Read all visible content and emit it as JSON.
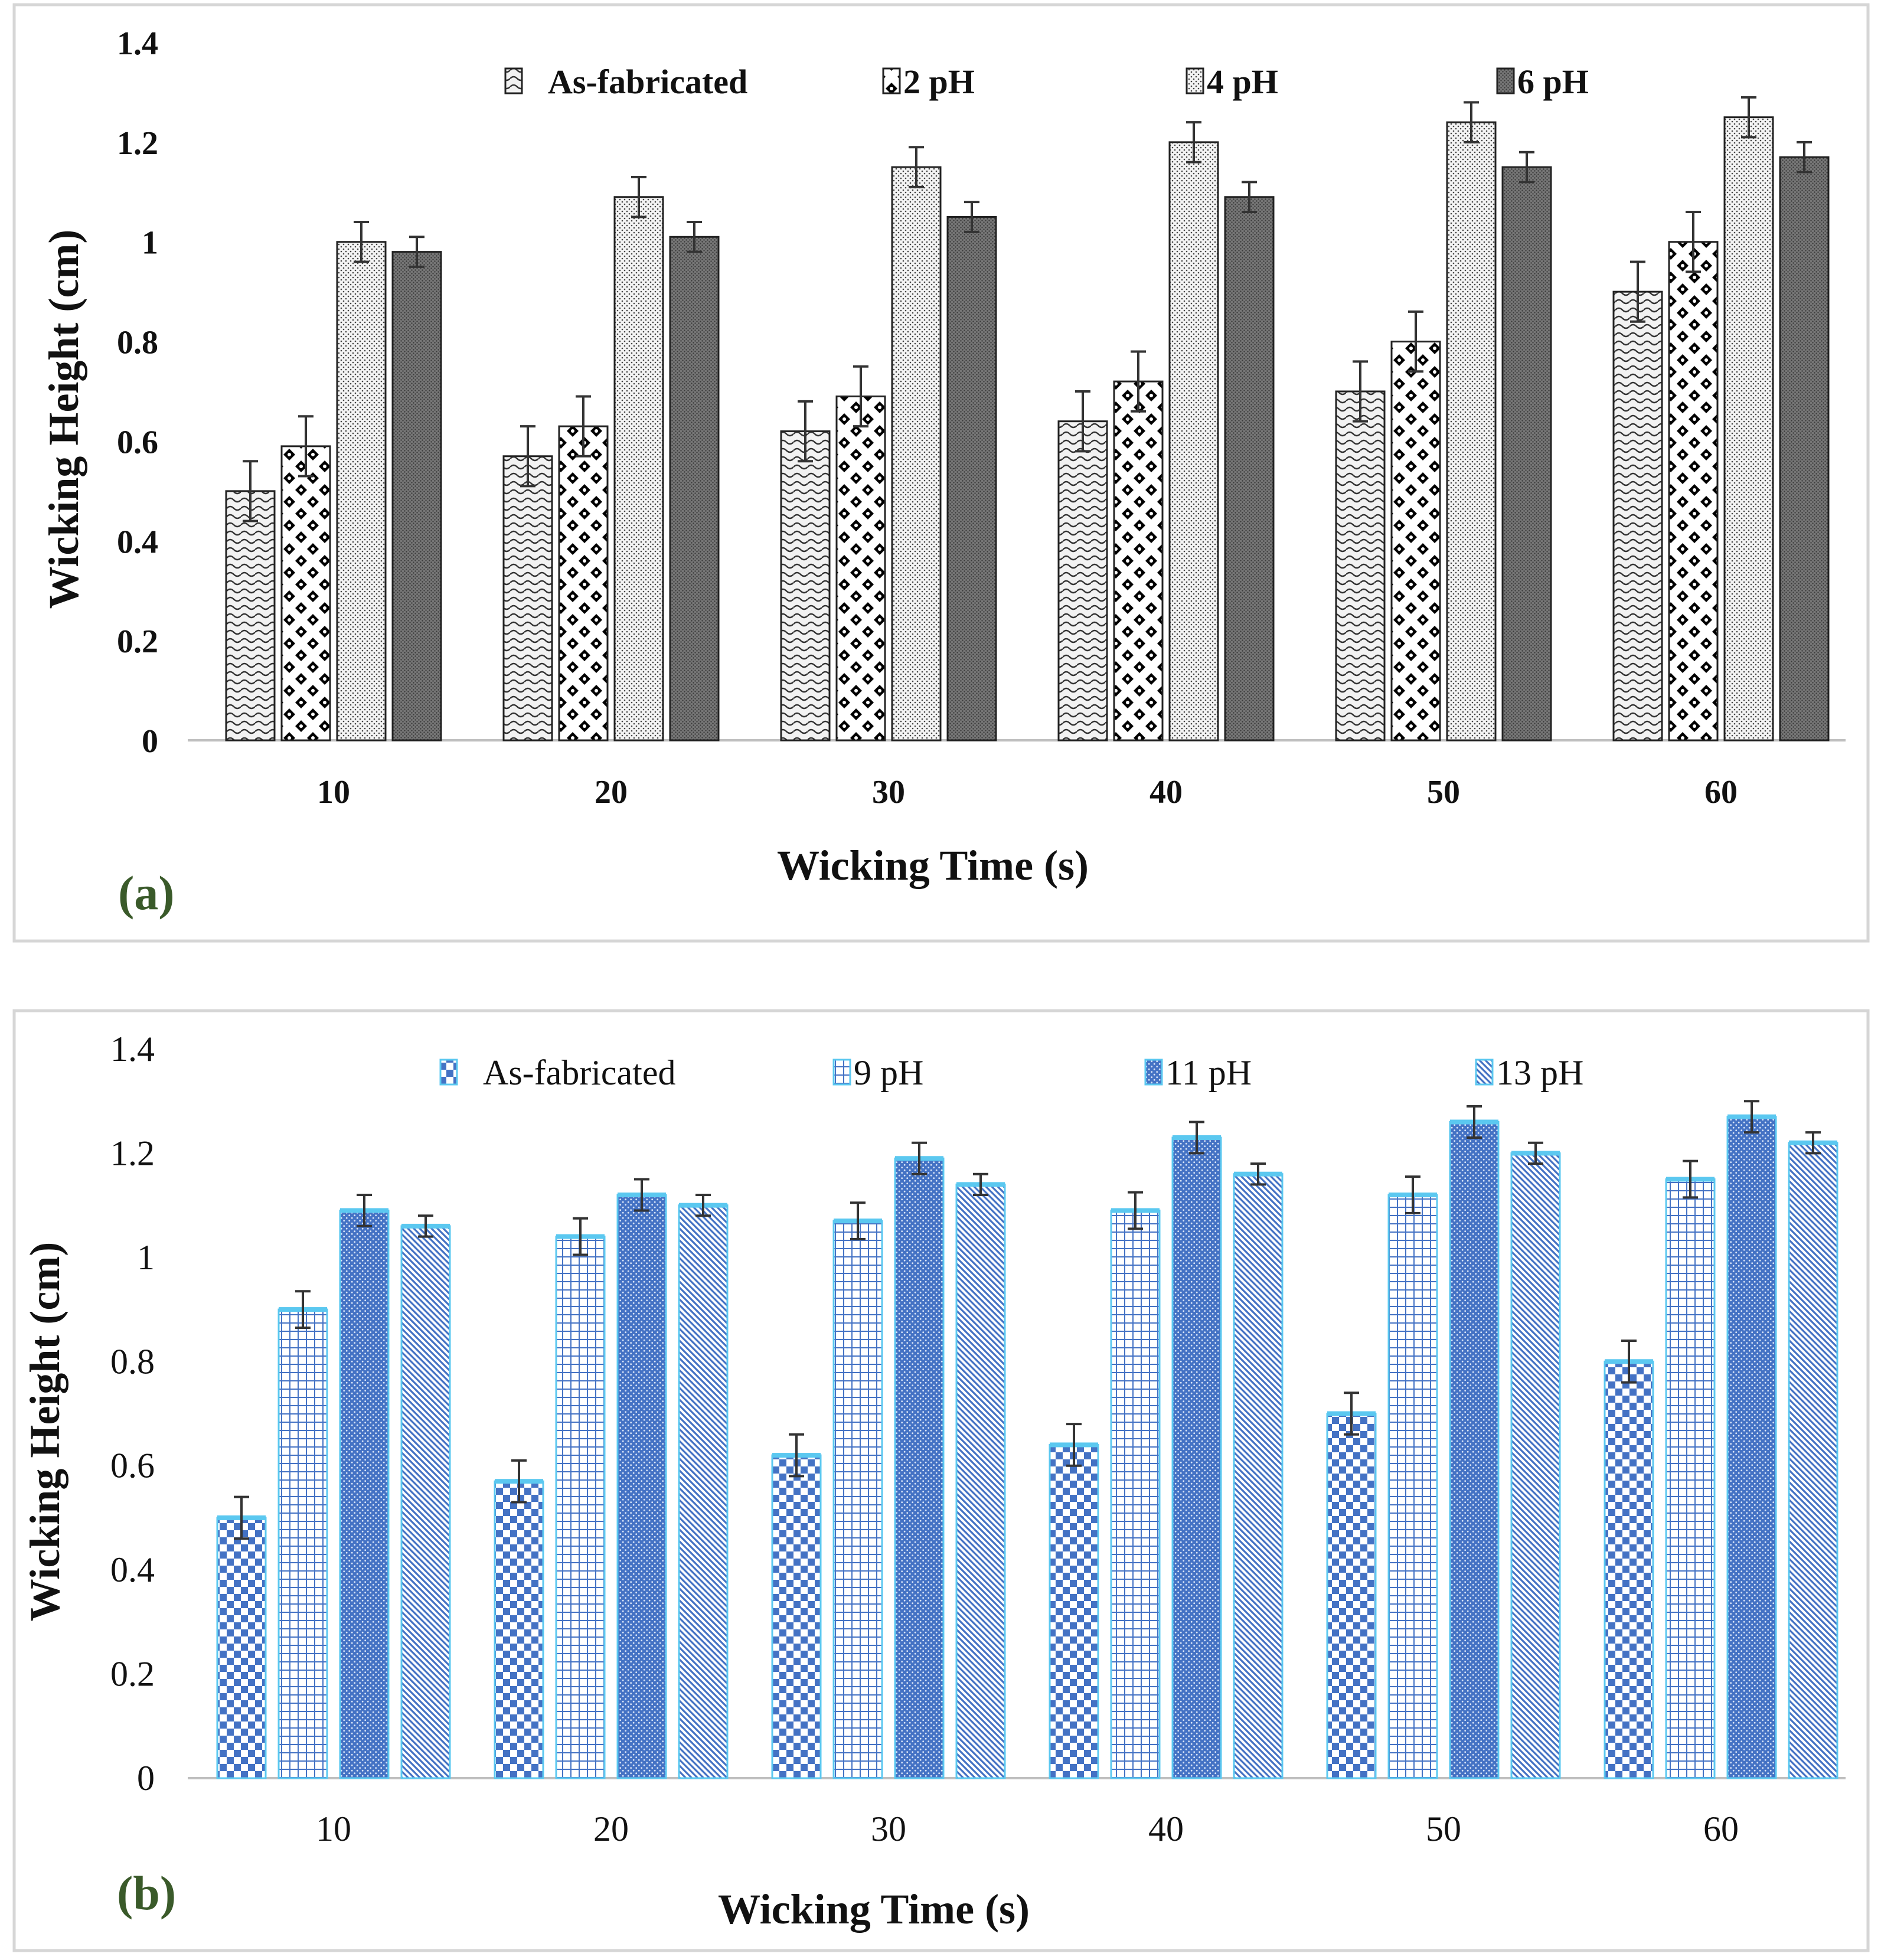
{
  "figure": {
    "colors": {
      "panel_label": "#3a5a2a",
      "bar_outline_a": "#222222",
      "bar_fill_b": "#4472c4",
      "bar_top_b": "#5bc8f0"
    },
    "panels": [
      {
        "label": "(a)",
        "xlabel": "Wicking   Time  (s)",
        "ylabel": "Wicking    Height  (cm)"
      },
      {
        "label": "(b)",
        "xlabel": "Wicking   Time  (s)",
        "ylabel": "Wicking    Height  (cm)"
      }
    ]
  },
  "chart_data": [
    {
      "type": "bar",
      "panel": "(a)",
      "title": "",
      "xlabel": "Wicking   Time  (s)",
      "ylabel": "Wicking    Height  (cm)",
      "categories": [
        "10",
        "20",
        "30",
        "40",
        "50",
        "60"
      ],
      "ylim": [
        0,
        1.4
      ],
      "yticks": [
        "0",
        "0.2",
        "0.4",
        "0.6",
        "0.8",
        "1",
        "1.2",
        "1.4"
      ],
      "grid": false,
      "legend_position": "top",
      "series": [
        {
          "name": "As-fabricated",
          "pattern": "wave-a",
          "values": [
            0.5,
            0.57,
            0.62,
            0.64,
            0.7,
            0.9
          ],
          "errors": [
            0.06,
            0.06,
            0.06,
            0.06,
            0.06,
            0.06
          ]
        },
        {
          "name": "2 pH",
          "pattern": "checker-a",
          "values": [
            0.59,
            0.63,
            0.69,
            0.72,
            0.8,
            1.0
          ],
          "errors": [
            0.06,
            0.06,
            0.06,
            0.06,
            0.06,
            0.06
          ]
        },
        {
          "name": "4 pH",
          "pattern": "dots-a",
          "values": [
            1.0,
            1.09,
            1.15,
            1.2,
            1.24,
            1.25
          ],
          "errors": [
            0.04,
            0.04,
            0.04,
            0.04,
            0.04,
            0.04
          ]
        },
        {
          "name": "6 pH",
          "pattern": "dense-a",
          "values": [
            0.98,
            1.01,
            1.05,
            1.09,
            1.15,
            1.17
          ],
          "errors": [
            0.03,
            0.03,
            0.03,
            0.03,
            0.03,
            0.03
          ]
        }
      ]
    },
    {
      "type": "bar",
      "panel": "(b)",
      "title": "",
      "xlabel": "Wicking   Time  (s)",
      "ylabel": "Wicking    Height  (cm)",
      "categories": [
        "10",
        "20",
        "30",
        "40",
        "50",
        "60"
      ],
      "ylim": [
        0,
        1.4
      ],
      "yticks": [
        "0",
        "0.2",
        "0.4",
        "0.6",
        "0.8",
        "1",
        "1.2",
        "1.4"
      ],
      "grid": false,
      "legend_position": "top",
      "series": [
        {
          "name": "As-fabricated",
          "pattern": "checker-b",
          "values": [
            0.5,
            0.57,
            0.62,
            0.64,
            0.7,
            0.8
          ],
          "errors": [
            0.04,
            0.04,
            0.04,
            0.04,
            0.04,
            0.04
          ]
        },
        {
          "name": "9 pH",
          "pattern": "grid-b",
          "values": [
            0.9,
            1.04,
            1.07,
            1.09,
            1.12,
            1.15
          ],
          "errors": [
            0.035,
            0.035,
            0.035,
            0.035,
            0.035,
            0.035
          ]
        },
        {
          "name": "11 pH",
          "pattern": "dots-b",
          "values": [
            1.09,
            1.12,
            1.19,
            1.23,
            1.26,
            1.27
          ],
          "errors": [
            0.03,
            0.03,
            0.03,
            0.03,
            0.03,
            0.03
          ]
        },
        {
          "name": "13 pH",
          "pattern": "diag-b",
          "values": [
            1.06,
            1.1,
            1.14,
            1.16,
            1.2,
            1.22
          ],
          "errors": [
            0.02,
            0.02,
            0.02,
            0.02,
            0.02,
            0.02
          ]
        }
      ]
    }
  ]
}
